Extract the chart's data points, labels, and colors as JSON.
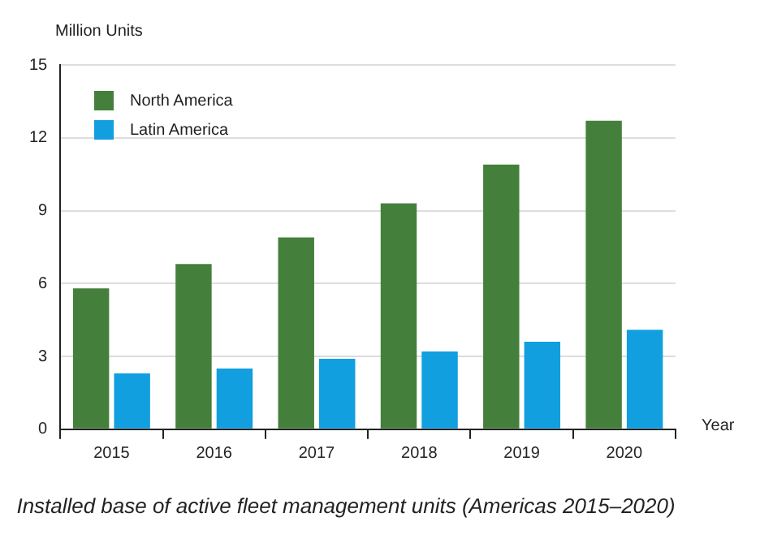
{
  "chart_data": {
    "type": "bar",
    "title": "Installed base of active fleet management units (Americas 2015–2020)",
    "xlabel": "Year",
    "ylabel": "Million Units",
    "categories": [
      "2015",
      "2016",
      "2017",
      "2018",
      "2019",
      "2020"
    ],
    "series": [
      {
        "name": "North America",
        "color": "#44803c",
        "values": [
          5.8,
          6.8,
          7.9,
          9.3,
          10.9,
          12.7
        ]
      },
      {
        "name": "Latin America",
        "color": "#119fe0",
        "values": [
          2.3,
          2.5,
          2.9,
          3.2,
          3.6,
          4.1
        ]
      }
    ],
    "ylim": [
      0,
      15
    ],
    "yticks": [
      0,
      3,
      6,
      9,
      12,
      15
    ],
    "grid": "y",
    "legend": "top left"
  }
}
